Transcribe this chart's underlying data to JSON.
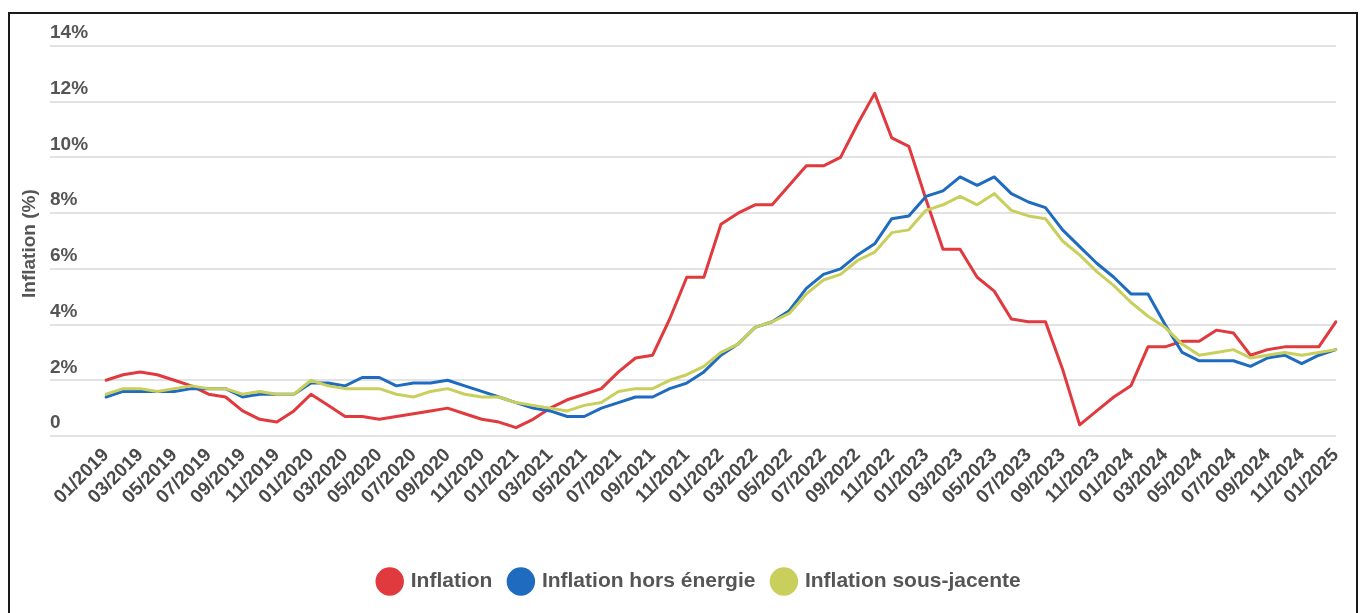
{
  "chart_data": {
    "type": "line",
    "ylabel": "Inflation (%)",
    "categories": [
      "01/2019",
      null,
      "03/2019",
      null,
      "05/2019",
      null,
      "07/2019",
      null,
      "09/2019",
      null,
      "11/2019",
      null,
      "01/2020",
      null,
      "03/2020",
      null,
      "05/2020",
      null,
      "07/2020",
      null,
      "09/2020",
      null,
      "11/2020",
      null,
      "01/2021",
      null,
      "03/2021",
      null,
      "05/2021",
      null,
      "07/2021",
      null,
      "09/2021",
      null,
      "11/2021",
      null,
      "01/2022",
      null,
      "03/2022",
      null,
      "05/2022",
      null,
      "07/2022",
      null,
      "09/2022",
      null,
      "11/2022",
      null,
      "01/2023",
      null,
      "03/2023",
      null,
      "05/2023",
      null,
      "07/2023",
      null,
      "09/2023",
      null,
      "11/2023",
      null,
      "01/2024",
      null,
      "03/2024",
      null,
      "05/2024",
      null,
      "07/2024",
      null,
      "09/2024",
      null,
      "11/2024",
      null,
      "01/2025"
    ],
    "series": [
      {
        "name": "Inflation",
        "color": "#e0393e",
        "values": [
          2.0,
          2.2,
          2.3,
          2.2,
          2.0,
          1.8,
          1.5,
          1.4,
          0.9,
          0.6,
          0.5,
          0.9,
          1.5,
          1.1,
          0.7,
          0.7,
          0.6,
          0.7,
          0.8,
          0.9,
          1.0,
          0.8,
          0.6,
          0.5,
          0.3,
          0.6,
          1.0,
          1.3,
          1.5,
          1.7,
          2.3,
          2.8,
          2.9,
          4.2,
          5.7,
          5.7,
          7.6,
          8.0,
          8.3,
          8.3,
          9.0,
          9.7,
          9.7,
          10.0,
          11.2,
          12.3,
          10.7,
          10.4,
          8.5,
          6.7,
          6.7,
          5.7,
          5.2,
          4.2,
          4.1,
          4.1,
          2.4,
          0.4,
          0.9,
          1.4,
          1.8,
          3.2,
          3.2,
          3.4,
          3.4,
          3.8,
          3.7,
          2.9,
          3.1,
          3.2,
          3.2,
          3.2,
          4.1
        ]
      },
      {
        "name": "Inflation hors énergie",
        "color": "#1f6bbf",
        "values": [
          1.4,
          1.6,
          1.6,
          1.6,
          1.6,
          1.7,
          1.7,
          1.7,
          1.4,
          1.5,
          1.5,
          1.5,
          1.9,
          1.9,
          1.8,
          2.1,
          2.1,
          1.8,
          1.9,
          1.9,
          2.0,
          1.8,
          1.6,
          1.4,
          1.2,
          1.0,
          0.9,
          0.7,
          0.7,
          1.0,
          1.2,
          1.4,
          1.4,
          1.7,
          1.9,
          2.3,
          2.9,
          3.3,
          3.9,
          4.1,
          4.5,
          5.3,
          5.8,
          6.0,
          6.5,
          6.9,
          7.8,
          7.9,
          8.6,
          8.8,
          9.3,
          9.0,
          9.3,
          8.7,
          8.4,
          8.2,
          7.4,
          6.8,
          6.2,
          5.7,
          5.1,
          5.1,
          4.0,
          3.0,
          2.7,
          2.7,
          2.7,
          2.5,
          2.8,
          2.9,
          2.6,
          2.9,
          3.1
        ]
      },
      {
        "name": "Inflation sous-jacente",
        "color": "#c9cf5c",
        "values": [
          1.5,
          1.7,
          1.7,
          1.6,
          1.7,
          1.8,
          1.7,
          1.7,
          1.5,
          1.6,
          1.5,
          1.5,
          2.0,
          1.8,
          1.7,
          1.7,
          1.7,
          1.5,
          1.4,
          1.6,
          1.7,
          1.5,
          1.4,
          1.4,
          1.2,
          1.1,
          1.0,
          0.9,
          1.1,
          1.2,
          1.6,
          1.7,
          1.7,
          2.0,
          2.2,
          2.5,
          3.0,
          3.3,
          3.9,
          4.1,
          4.4,
          5.1,
          5.6,
          5.8,
          6.3,
          6.6,
          7.3,
          7.4,
          8.1,
          8.3,
          8.6,
          8.3,
          8.7,
          8.1,
          7.9,
          7.8,
          7.0,
          6.5,
          5.9,
          5.4,
          4.8,
          4.3,
          3.9,
          3.3,
          2.9,
          3.0,
          3.1,
          2.8,
          2.9,
          3.0,
          2.9,
          3.0,
          3.1
        ]
      }
    ],
    "ylim": [
      0,
      14
    ],
    "yticks": [
      0,
      {
        "value": 2,
        "label": "2%"
      },
      {
        "value": 4,
        "label": "4%"
      },
      {
        "value": 6,
        "label": "6%"
      },
      {
        "value": 8,
        "label": "8%"
      },
      {
        "value": 10,
        "label": "10%"
      },
      {
        "value": 12,
        "label": "12%"
      },
      {
        "value": 14,
        "label": "14%"
      }
    ],
    "grid": "y",
    "legend": "bottom",
    "marker": "none"
  }
}
